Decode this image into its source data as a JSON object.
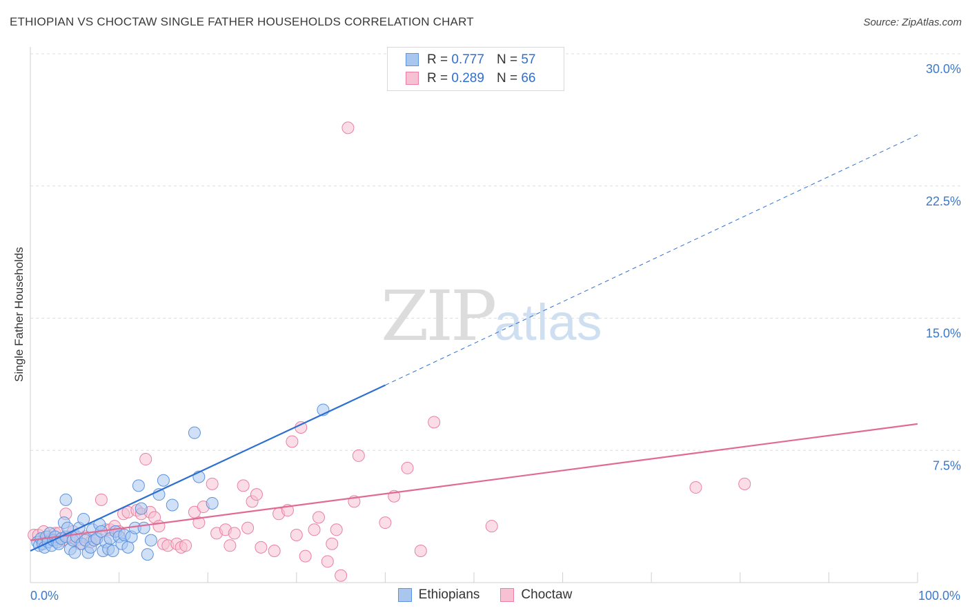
{
  "title": "ETHIOPIAN VS CHOCTAW SINGLE FATHER HOUSEHOLDS CORRELATION CHART",
  "source": "Source: ZipAtlas.com",
  "watermark": {
    "zip": "ZIP",
    "atlas": "atlas"
  },
  "legend": {
    "rows": [
      {
        "r_label": "R = ",
        "r_value": "0.777",
        "n_label": "N = ",
        "n_value": "57"
      },
      {
        "r_label": "R = ",
        "r_value": "0.289",
        "n_label": "N = ",
        "n_value": "66"
      }
    ]
  },
  "bottom_legend": {
    "ethiopians": "Ethiopians",
    "choctaw": "Choctaw"
  },
  "chart_data": {
    "type": "scatter",
    "title": "ETHIOPIAN VS CHOCTAW SINGLE FATHER HOUSEHOLDS CORRELATION CHART",
    "xlabel": "",
    "ylabel": "Single Father Households",
    "xlim": [
      0,
      100
    ],
    "ylim": [
      0,
      30
    ],
    "x_tick_labels": [
      "0.0%",
      "100.0%"
    ],
    "y_ticks": [
      7.5,
      15.0,
      22.5,
      30.0
    ],
    "y_tick_labels": [
      "7.5%",
      "15.0%",
      "22.5%",
      "30.0%"
    ],
    "grid": true,
    "colors": {
      "ethiopians": "#5b93de",
      "ethiopians_fill": "#a9c6ef",
      "choctaw": "#ea7fa2",
      "choctaw_fill": "#f6c1d2",
      "ethiopians_line": "#2c6fd1",
      "choctaw_line": "#e06a94"
    },
    "series": [
      {
        "name": "Ethiopians",
        "r": 0.777,
        "n": 57,
        "trend": {
          "x0": 0,
          "y0": 1.8,
          "x_solid_end": 40,
          "y_solid_end": 11.2,
          "x1": 100,
          "y1": 25.4
        },
        "points": [
          [
            0.8,
            2.3
          ],
          [
            1.0,
            2.1
          ],
          [
            1.2,
            2.5
          ],
          [
            1.4,
            2.2
          ],
          [
            1.6,
            2.0
          ],
          [
            1.8,
            2.6
          ],
          [
            2.0,
            2.3
          ],
          [
            2.2,
            2.8
          ],
          [
            2.4,
            2.1
          ],
          [
            2.6,
            2.4
          ],
          [
            2.8,
            2.6
          ],
          [
            3.0,
            2.3
          ],
          [
            3.2,
            2.2
          ],
          [
            3.5,
            2.5
          ],
          [
            3.8,
            3.4
          ],
          [
            4.0,
            2.6
          ],
          [
            4.2,
            3.1
          ],
          [
            4.5,
            1.9
          ],
          [
            4.8,
            2.4
          ],
          [
            5.0,
            1.7
          ],
          [
            5.2,
            2.6
          ],
          [
            5.5,
            3.1
          ],
          [
            5.8,
            2.2
          ],
          [
            6.0,
            3.6
          ],
          [
            6.2,
            2.4
          ],
          [
            6.5,
            1.7
          ],
          [
            6.8,
            2.0
          ],
          [
            7.0,
            3.0
          ],
          [
            7.2,
            2.4
          ],
          [
            7.5,
            2.5
          ],
          [
            7.8,
            3.3
          ],
          [
            8.0,
            2.9
          ],
          [
            8.2,
            1.8
          ],
          [
            8.5,
            2.3
          ],
          [
            8.8,
            1.9
          ],
          [
            9.0,
            2.5
          ],
          [
            9.3,
            1.8
          ],
          [
            9.6,
            2.9
          ],
          [
            10.0,
            2.6
          ],
          [
            10.3,
            2.2
          ],
          [
            10.6,
            2.7
          ],
          [
            11.0,
            2.0
          ],
          [
            11.4,
            2.6
          ],
          [
            11.8,
            3.1
          ],
          [
            12.2,
            5.5
          ],
          [
            12.5,
            4.2
          ],
          [
            12.8,
            3.1
          ],
          [
            13.2,
            1.6
          ],
          [
            13.6,
            2.4
          ],
          [
            14.5,
            5.0
          ],
          [
            15.0,
            5.8
          ],
          [
            16.0,
            4.4
          ],
          [
            18.5,
            8.5
          ],
          [
            19.0,
            6.0
          ],
          [
            20.5,
            4.5
          ],
          [
            4.0,
            4.7
          ],
          [
            33.0,
            9.8
          ]
        ]
      },
      {
        "name": "Choctaw",
        "r": 0.289,
        "n": 66,
        "trend": {
          "x0": 0,
          "y0": 2.4,
          "x1": 100,
          "y1": 9.0
        },
        "points": [
          [
            0.4,
            2.7
          ],
          [
            0.9,
            2.7
          ],
          [
            1.5,
            2.9
          ],
          [
            2.0,
            2.6
          ],
          [
            2.4,
            2.5
          ],
          [
            2.8,
            2.8
          ],
          [
            3.2,
            2.8
          ],
          [
            3.6,
            2.4
          ],
          [
            4.0,
            3.9
          ],
          [
            4.4,
            2.6
          ],
          [
            4.8,
            2.9
          ],
          [
            5.2,
            2.4
          ],
          [
            5.6,
            2.2
          ],
          [
            6.2,
            2.6
          ],
          [
            6.8,
            2.3
          ],
          [
            7.5,
            2.5
          ],
          [
            8.0,
            4.7
          ],
          [
            8.5,
            3.0
          ],
          [
            9.0,
            3.0
          ],
          [
            9.5,
            3.2
          ],
          [
            10.0,
            2.9
          ],
          [
            10.5,
            3.9
          ],
          [
            11.0,
            4.0
          ],
          [
            12.0,
            4.1
          ],
          [
            12.5,
            3.9
          ],
          [
            13.0,
            7.0
          ],
          [
            13.5,
            4.0
          ],
          [
            14.0,
            3.7
          ],
          [
            14.5,
            3.2
          ],
          [
            15.0,
            2.2
          ],
          [
            15.5,
            2.1
          ],
          [
            16.5,
            2.2
          ],
          [
            17.0,
            2.0
          ],
          [
            17.5,
            2.1
          ],
          [
            18.5,
            4.0
          ],
          [
            19.0,
            3.4
          ],
          [
            19.5,
            4.3
          ],
          [
            20.5,
            5.6
          ],
          [
            21.0,
            2.8
          ],
          [
            22.0,
            3.0
          ],
          [
            22.5,
            2.1
          ],
          [
            23.0,
            2.8
          ],
          [
            24.0,
            5.5
          ],
          [
            24.5,
            3.1
          ],
          [
            25.0,
            4.6
          ],
          [
            25.5,
            5.0
          ],
          [
            26.0,
            2.0
          ],
          [
            27.5,
            1.8
          ],
          [
            28.0,
            3.9
          ],
          [
            29.0,
            4.1
          ],
          [
            29.5,
            8.0
          ],
          [
            30.0,
            2.7
          ],
          [
            30.5,
            8.8
          ],
          [
            31.0,
            1.5
          ],
          [
            32.0,
            3.0
          ],
          [
            32.5,
            3.7
          ],
          [
            33.5,
            1.2
          ],
          [
            34.0,
            2.2
          ],
          [
            34.5,
            3.0
          ],
          [
            35.0,
            0.4
          ],
          [
            36.5,
            4.6
          ],
          [
            37.0,
            7.2
          ],
          [
            40.0,
            3.4
          ],
          [
            41.0,
            4.9
          ],
          [
            42.5,
            6.5
          ],
          [
            35.8,
            25.8
          ]
        ]
      }
    ],
    "extra_points": {
      "choctaw_far": [
        [
          44.0,
          1.8
        ],
        [
          45.5,
          9.1
        ],
        [
          52.0,
          3.2
        ],
        [
          75.0,
          5.4
        ],
        [
          80.5,
          5.6
        ]
      ]
    }
  }
}
